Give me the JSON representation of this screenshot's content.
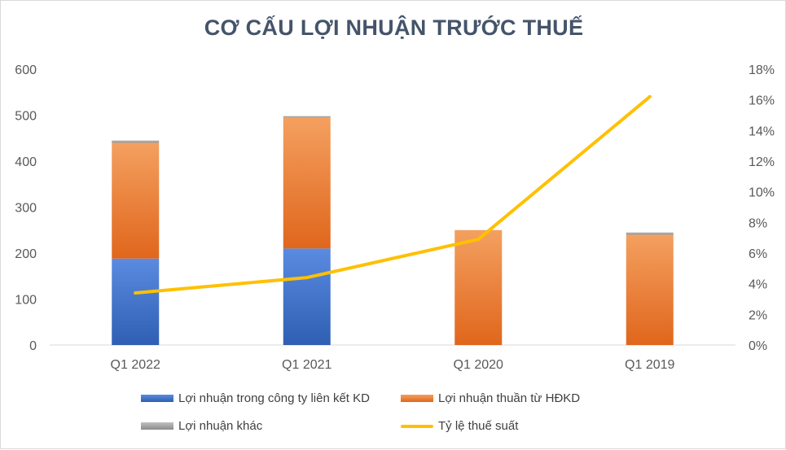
{
  "chart_data": {
    "type": "bar",
    "title": "CƠ CẤU LỢI NHUẬN TRƯỚC THUẾ",
    "categories": [
      "Q1 2022",
      "Q1 2021",
      "Q1 2020",
      "Q1 2019"
    ],
    "series": [
      {
        "name": "Lợi nhuận trong công ty liên kết KD",
        "kind": "stacked-bar",
        "axis": "left",
        "values": [
          188,
          210,
          0,
          0
        ],
        "color": "#4472c4"
      },
      {
        "name": "Lợi nhuận thuần từ HĐKD",
        "kind": "stacked-bar",
        "axis": "left",
        "values": [
          252,
          285,
          250,
          240
        ],
        "color": "#ed7d31"
      },
      {
        "name": "Lợi nhuận khác",
        "kind": "stacked-bar",
        "axis": "left",
        "values": [
          5,
          3,
          0,
          5
        ],
        "color": "#a5a5a5"
      },
      {
        "name": "Tỷ lệ thuế suất",
        "kind": "line",
        "axis": "right",
        "values": [
          3.4,
          4.4,
          6.9,
          16.2
        ],
        "unit": "%",
        "color": "#ffc000"
      }
    ],
    "y_left": {
      "ylim": [
        0,
        600
      ],
      "ticks": [
        "0",
        "100",
        "200",
        "300",
        "400",
        "500",
        "600"
      ]
    },
    "y_right": {
      "ylim": [
        0,
        18
      ],
      "ticks": [
        "0%",
        "2%",
        "4%",
        "6%",
        "8%",
        "10%",
        "12%",
        "14%",
        "16%",
        "18%"
      ]
    },
    "grid": false,
    "legend_position": "bottom"
  }
}
